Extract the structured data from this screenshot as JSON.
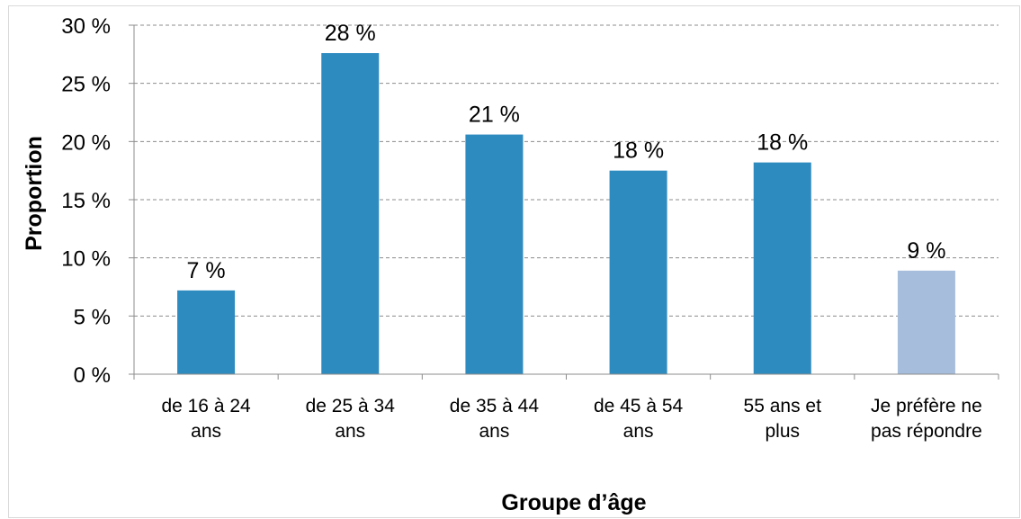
{
  "chart_data": {
    "type": "bar",
    "title": "",
    "xlabel": "Groupe d’âge",
    "ylabel": "Proportion",
    "ylim": [
      0,
      30
    ],
    "yticks": [
      0,
      5,
      10,
      15,
      20,
      25,
      30
    ],
    "ytick_labels": [
      "0 %",
      "5 %",
      "10 %",
      "15 %",
      "20 %",
      "25 %",
      "30 %"
    ],
    "grid": "horizontal dashed",
    "categories": [
      [
        "de 16 à 24",
        "ans"
      ],
      [
        "de 25 à 34",
        "ans"
      ],
      [
        "de 35 à 44",
        "ans"
      ],
      [
        "de 45 à 54",
        "ans"
      ],
      [
        "55 ans et",
        "plus"
      ],
      [
        "Je préfère ne",
        "pas répondre"
      ]
    ],
    "values": [
      7.2,
      27.6,
      20.6,
      17.5,
      18.2,
      8.9
    ],
    "data_labels": [
      "7 %",
      "28 %",
      "21 %",
      "18 %",
      "18 %",
      "9 %"
    ],
    "colors": [
      "#2e8bc0",
      "#2e8bc0",
      "#2e8bc0",
      "#2e8bc0",
      "#2e8bc0",
      "#a6bddb"
    ]
  }
}
